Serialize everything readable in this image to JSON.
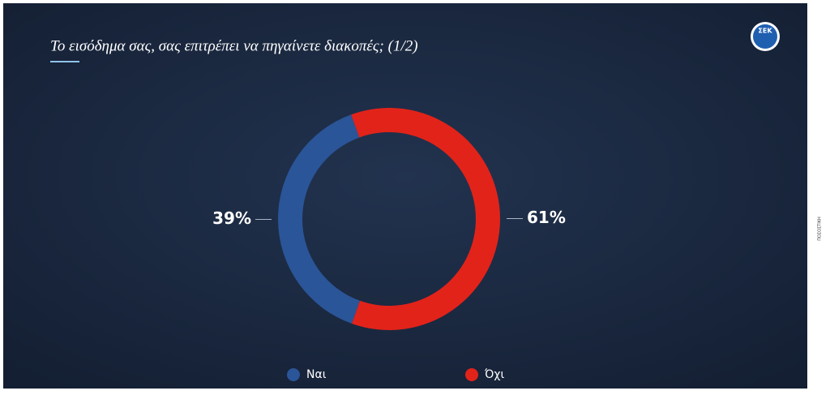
{
  "chart_data": {
    "type": "donut",
    "title": "Το εισόδημα σας, σας επιτρέπει να πηγαίνετε διακοπές; (1/2)",
    "categories": [
      "Ναι",
      "Όχι"
    ],
    "values": [
      39,
      61
    ],
    "value_labels": [
      "39%",
      "61%"
    ],
    "colors": [
      "#2a5598",
      "#e2231a"
    ],
    "legend": "bottom"
  },
  "logo": "ΣΕΚ",
  "side_tab": "ΠΟΣΟΣΤΙΚΗ"
}
